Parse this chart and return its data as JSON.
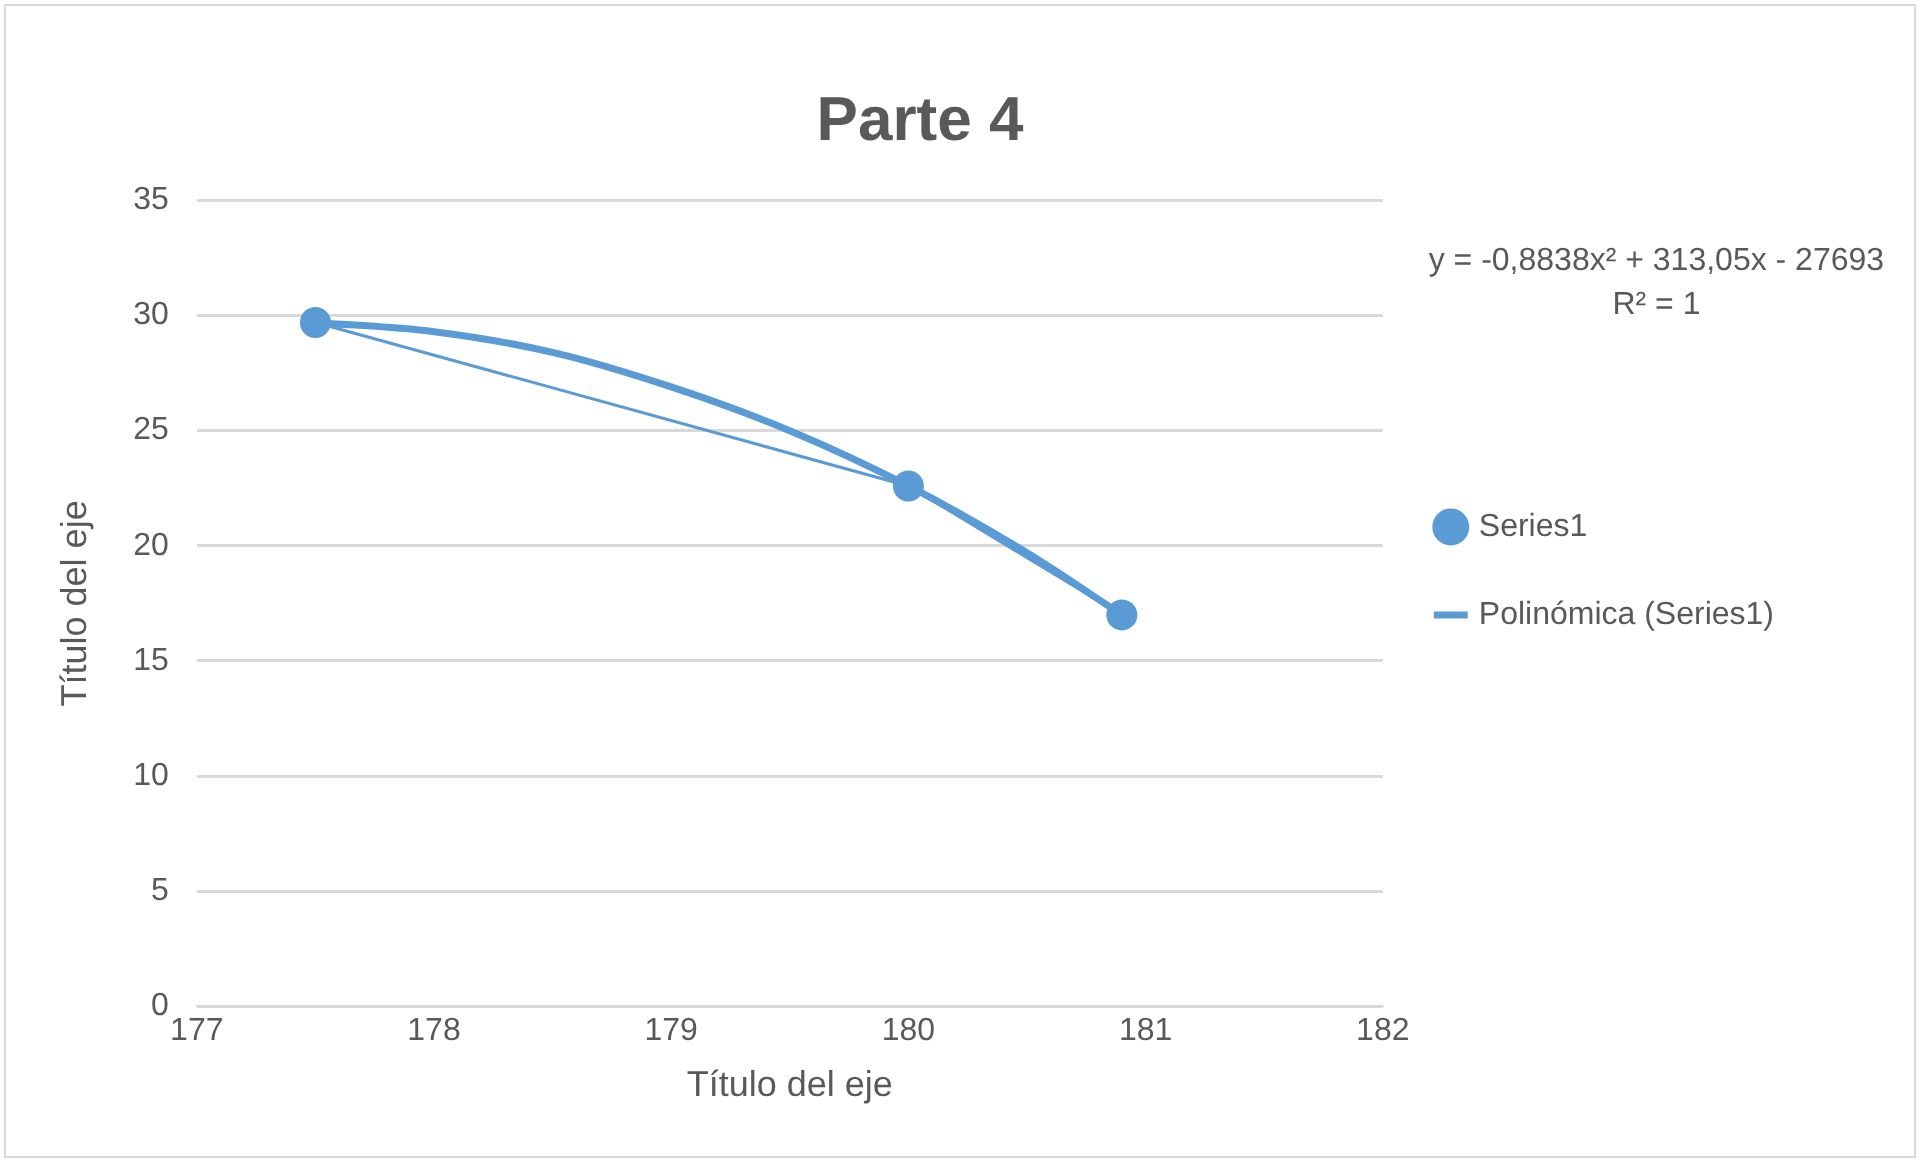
{
  "chart_data": {
    "type": "scatter",
    "title": "Parte 4",
    "xlabel": "Título del eje",
    "ylabel": "Título del eje",
    "series": [
      {
        "name": "Series1",
        "type": "line",
        "color": "#5b9bd5",
        "marker": "circle",
        "x": [
          177.5,
          180,
          180.9
        ],
        "values": [
          29.7,
          22.6,
          17.0
        ]
      },
      {
        "name": "Polinómica (Series1)",
        "type": "line",
        "color": "#5b9bd5",
        "marker": "none",
        "x": [
          177.5,
          178,
          178.5,
          179,
          179.5,
          180,
          180.5,
          180.9
        ],
        "values": [
          29.7,
          29.3,
          28.4,
          26.9,
          25.0,
          22.6,
          19.7,
          17.0
        ]
      }
    ],
    "xlim": [
      177,
      182
    ],
    "xticks": [
      177,
      178,
      179,
      180,
      181,
      182
    ],
    "ylim": [
      0,
      35
    ],
    "yticks": [
      0,
      5,
      10,
      15,
      20,
      25,
      30,
      35
    ],
    "grid": "y",
    "legend": "right",
    "annotations": [
      "y = -0,8838x² + 313,05x - 27693",
      "R² = 1"
    ]
  }
}
